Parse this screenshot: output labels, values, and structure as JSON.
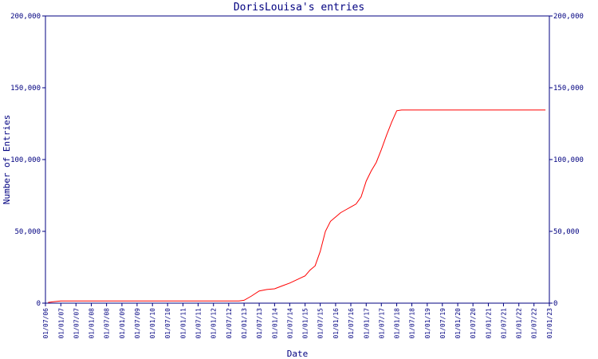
{
  "chart_data": {
    "type": "line",
    "title": "DorisLouisa's entries",
    "xlabel": "Date",
    "ylabel": "Number of Entries",
    "grid": false,
    "ylim": [
      0,
      200000
    ],
    "xlim": [
      "2006-07-01",
      "2023-01-01"
    ],
    "y_ticks": [
      0,
      50000,
      100000,
      150000,
      200000
    ],
    "y_tick_labels": [
      "0",
      "50,000",
      "100,000",
      "150,000",
      "200,000"
    ],
    "x_ticks": [
      "2006-07-01",
      "2007-01-01",
      "2007-07-01",
      "2008-01-01",
      "2008-07-01",
      "2009-01-01",
      "2009-07-01",
      "2010-01-01",
      "2010-07-01",
      "2011-01-01",
      "2011-07-01",
      "2012-01-01",
      "2012-07-01",
      "2013-01-01",
      "2013-07-01",
      "2014-01-01",
      "2014-07-01",
      "2015-01-01",
      "2015-07-01",
      "2016-01-01",
      "2016-07-01",
      "2017-01-01",
      "2017-07-01",
      "2018-01-01",
      "2018-07-01",
      "2019-01-01",
      "2019-07-01",
      "2020-01-01",
      "2020-07-01",
      "2021-01-01",
      "2021-07-01",
      "2022-01-01",
      "2022-07-01",
      "2023-01-01"
    ],
    "x_tick_labels": [
      "01/07/06",
      "01/01/07",
      "01/07/07",
      "01/01/08",
      "01/07/08",
      "01/01/09",
      "01/07/09",
      "01/01/10",
      "01/07/10",
      "01/01/11",
      "01/07/11",
      "01/01/12",
      "01/07/12",
      "01/01/13",
      "01/07/13",
      "01/01/14",
      "01/07/14",
      "01/01/15",
      "01/07/15",
      "01/01/16",
      "01/07/16",
      "01/01/17",
      "01/07/17",
      "01/01/18",
      "01/07/18",
      "01/01/19",
      "01/07/19",
      "01/01/20",
      "01/07/20",
      "01/01/21",
      "01/07/21",
      "01/01/22",
      "01/07/22",
      "01/01/23"
    ],
    "series": [
      {
        "color": "#ff0000",
        "x": [
          "2006-08-01",
          "2006-10-01",
          "2007-01-01",
          "2008-01-01",
          "2009-01-01",
          "2010-01-01",
          "2011-01-01",
          "2012-01-01",
          "2012-06-01",
          "2012-11-01",
          "2013-01-01",
          "2013-04-01",
          "2013-07-01",
          "2013-10-01",
          "2014-01-01",
          "2014-04-01",
          "2014-07-01",
          "2014-10-01",
          "2015-01-01",
          "2015-03-01",
          "2015-05-01",
          "2015-07-01",
          "2015-09-01",
          "2015-11-01",
          "2016-01-01",
          "2016-03-01",
          "2016-05-01",
          "2016-07-01",
          "2016-09-01",
          "2016-11-01",
          "2017-01-01",
          "2017-03-01",
          "2017-05-01",
          "2017-07-01",
          "2017-09-01",
          "2017-11-01",
          "2018-01-01",
          "2018-03-01",
          "2018-05-01",
          "2018-07-01",
          "2019-01-01",
          "2020-01-01",
          "2021-01-01",
          "2022-01-01",
          "2022-11-15"
        ],
        "y": [
          500,
          1000,
          1500,
          1500,
          1500,
          1500,
          1500,
          1500,
          1500,
          1500,
          2000,
          5000,
          8500,
          9500,
          10000,
          12000,
          14000,
          16500,
          19000,
          23000,
          26000,
          36000,
          50000,
          57000,
          60000,
          63000,
          65000,
          67000,
          69000,
          74000,
          85000,
          92000,
          98000,
          107000,
          117000,
          126000,
          134000,
          134500,
          134500,
          134500,
          134500,
          134500,
          134500,
          134500,
          134500
        ]
      }
    ]
  }
}
